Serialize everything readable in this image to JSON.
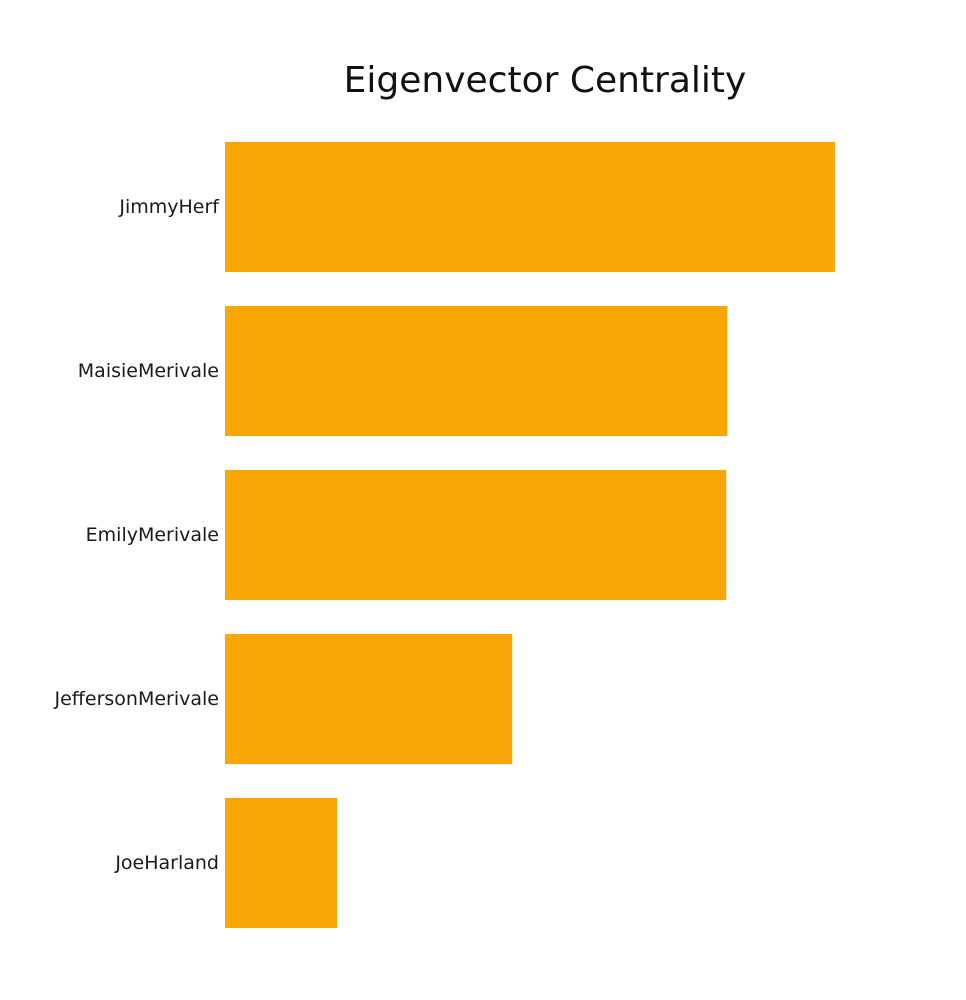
{
  "chart_data": {
    "type": "bar",
    "orientation": "horizontal",
    "title": "Eigenvector Centrality",
    "categories": [
      "JimmyHerf",
      "MaisieMerivale",
      "EmilyMerivale",
      "JeffersonMerivale",
      "JoeHarland"
    ],
    "values": [
      0.533,
      0.439,
      0.438,
      0.251,
      0.098
    ],
    "xlim": [
      0,
      0.533
    ],
    "xlabel": "",
    "ylabel": "",
    "grid": false,
    "axes_visible": false,
    "bar_color": "#F8A506"
  }
}
